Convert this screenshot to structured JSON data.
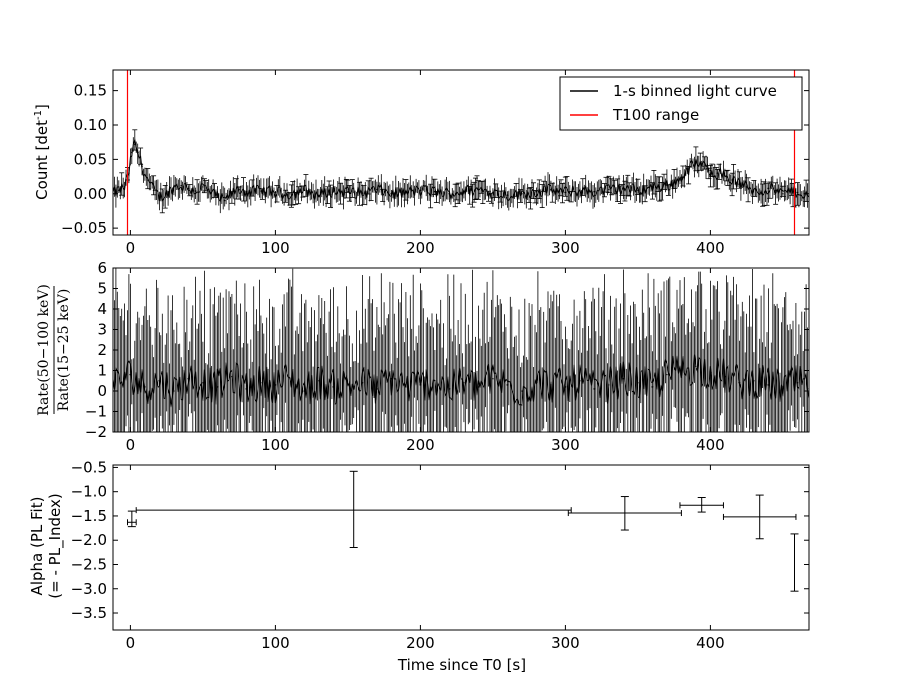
{
  "chart_data": [
    {
      "type": "line",
      "panel": "top",
      "ylabel": "Count [det",
      "ylabel_sup": "-1",
      "ylabel_end": "]",
      "xlim": [
        -12,
        468
      ],
      "ylim": [
        -0.06,
        0.18
      ],
      "xticks": [
        0,
        100,
        200,
        300,
        400
      ],
      "xtick_labels": [
        "0",
        "100",
        "200",
        "300",
        "400"
      ],
      "yticks": [
        -0.05,
        0.0,
        0.05,
        0.1,
        0.15
      ],
      "ytick_labels": [
        "−0.05",
        "0.00",
        "0.05",
        "0.10",
        "0.15"
      ],
      "legend": {
        "position": "top-right",
        "entries": [
          {
            "label": "1-s binned light curve",
            "color": "#000000"
          },
          {
            "label": "T100 range",
            "color": "#ff0000"
          }
        ]
      },
      "vlines": {
        "color": "#ff0000",
        "x": [
          -2,
          458
        ]
      },
      "series": [
        {
          "color": "#000000",
          "x": [
            -12,
            -8,
            -4,
            -1,
            1,
            3,
            5,
            8,
            12,
            16,
            20,
            25,
            30,
            35,
            40,
            45,
            50,
            55,
            60,
            65,
            70,
            75,
            80,
            90,
            100,
            110,
            120,
            130,
            140,
            150,
            160,
            170,
            180,
            190,
            200,
            210,
            220,
            230,
            240,
            250,
            260,
            270,
            280,
            290,
            300,
            310,
            320,
            330,
            340,
            350,
            360,
            370,
            375,
            380,
            385,
            390,
            395,
            400,
            405,
            410,
            415,
            420,
            425,
            430,
            435,
            440,
            445,
            450,
            455,
            460,
            465,
            468
          ],
          "y": [
            0.0,
            0.005,
            0.01,
            0.03,
            0.06,
            0.072,
            0.06,
            0.04,
            0.02,
            0.005,
            -0.005,
            0.0,
            0.01,
            0.012,
            0.008,
            0.004,
            0.01,
            0.002,
            -0.005,
            -0.01,
            0.0,
            0.006,
            0.003,
            0.004,
            0.002,
            0.0,
            0.005,
            -0.002,
            0.004,
            0.003,
            0.001,
            0.006,
            0.0,
            0.002,
            0.005,
            0.003,
            0.0,
            0.004,
            0.006,
            0.002,
            -0.002,
            0.0,
            0.003,
            0.006,
            0.002,
            0.004,
            0.003,
            0.006,
            0.008,
            0.005,
            0.01,
            0.012,
            0.016,
            0.024,
            0.036,
            0.045,
            0.04,
            0.034,
            0.03,
            0.026,
            0.02,
            0.014,
            0.01,
            0.006,
            0.004,
            0.008,
            0.005,
            0.0,
            0.004,
            0.002,
            0.0,
            -0.004
          ]
        }
      ]
    },
    {
      "type": "line",
      "panel": "middle",
      "ylabel_numerator": "Rate(50−100 keV)",
      "ylabel_denominator": "Rate(15−25 keV)",
      "xlim": [
        -12,
        468
      ],
      "ylim": [
        -2,
        6
      ],
      "xticks": [
        0,
        100,
        200,
        300,
        400
      ],
      "xtick_labels": [
        "0",
        "100",
        "200",
        "300",
        "400"
      ],
      "yticks": [
        -2,
        -1,
        0,
        1,
        2,
        3,
        4,
        5,
        6
      ],
      "ytick_labels": [
        "−2",
        "−1",
        "0",
        "1",
        "2",
        "3",
        "4",
        "5",
        "6"
      ],
      "series": [
        {
          "color": "#000000",
          "x": [
            -12,
            0,
            10,
            20,
            30,
            40,
            50,
            60,
            70,
            80,
            90,
            100,
            110,
            120,
            130,
            140,
            150,
            160,
            170,
            180,
            190,
            200,
            210,
            220,
            230,
            240,
            250,
            260,
            270,
            280,
            290,
            300,
            310,
            320,
            330,
            340,
            350,
            360,
            370,
            380,
            390,
            400,
            410,
            420,
            430,
            440,
            450,
            460,
            468
          ],
          "y": [
            0.3,
            0.8,
            0.2,
            0.5,
            0.0,
            0.6,
            0.4,
            0.2,
            0.7,
            0.1,
            0.4,
            0.3,
            0.6,
            0.0,
            0.5,
            0.2,
            0.3,
            0.4,
            0.1,
            0.6,
            0.2,
            0.3,
            0.5,
            0.1,
            0.4,
            0.2,
            0.6,
            0.3,
            0.0,
            0.4,
            0.3,
            0.2,
            0.5,
            0.1,
            0.3,
            0.6,
            0.4,
            0.2,
            0.8,
            1.0,
            1.2,
            0.9,
            0.7,
            0.4,
            0.5,
            0.3,
            0.2,
            0.4,
            0.1
          ]
        }
      ]
    },
    {
      "type": "scatter",
      "panel": "bottom",
      "xlabel": "Time since T0 [s]",
      "ylabel_line1": "Alpha (PL Fit)",
      "ylabel_line2": "(= - PL_Index)",
      "xlim": [
        -12,
        468
      ],
      "ylim": [
        -3.85,
        -0.45
      ],
      "xticks": [
        0,
        100,
        200,
        300,
        400
      ],
      "xtick_labels": [
        "0",
        "100",
        "200",
        "300",
        "400"
      ],
      "yticks": [
        -0.5,
        -1.0,
        -1.5,
        -2.0,
        -2.5,
        -3.0,
        -3.5
      ],
      "ytick_labels": [
        "−0.5",
        "−1.0",
        "−1.5",
        "−2.0",
        "−2.5",
        "−3.0",
        "−3.5"
      ],
      "points": [
        {
          "x": 1,
          "xerr": 3,
          "y": -1.63,
          "yerr_low": -1.72,
          "yerr_high": -1.4
        },
        {
          "x": 154,
          "xerr": 150,
          "y": -1.38,
          "yerr_low": -2.15,
          "yerr_high": -0.58
        },
        {
          "x": 341,
          "xerr": 39,
          "y": -1.44,
          "yerr_low": -1.79,
          "yerr_high": -1.1
        },
        {
          "x": 394,
          "xerr": 15,
          "y": -1.28,
          "yerr_low": -1.42,
          "yerr_high": -1.12
        },
        {
          "x": 434,
          "xerr": 25,
          "y": -1.52,
          "yerr_low": -1.97,
          "yerr_high": -1.07
        },
        {
          "x": 458,
          "xerr": 0,
          "y": -2.46,
          "yerr_low": -3.05,
          "yerr_high": -1.87
        }
      ]
    }
  ]
}
